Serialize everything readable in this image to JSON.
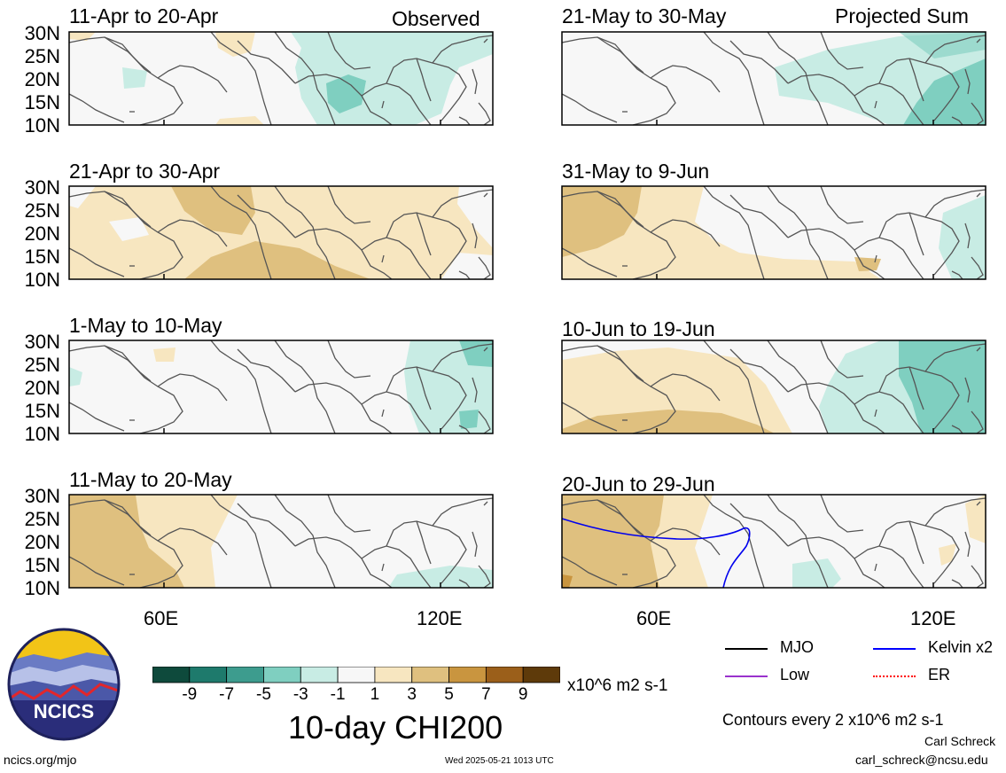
{
  "header": {
    "left_label": "Observed",
    "right_label": "Projected Sum"
  },
  "panels": [
    {
      "column": "left",
      "title": "11-Apr to 20-Apr"
    },
    {
      "column": "left",
      "title": "21-Apr to 30-Apr"
    },
    {
      "column": "left",
      "title": "1-May to 10-May"
    },
    {
      "column": "left",
      "title": "11-May to 20-May"
    },
    {
      "column": "right",
      "title": "21-May to 30-May"
    },
    {
      "column": "right",
      "title": "31-May to 9-Jun"
    },
    {
      "column": "right",
      "title": "10-Jun to 19-Jun"
    },
    {
      "column": "right",
      "title": "20-Jun to 29-Jun"
    }
  ],
  "lat_labels": [
    "30N",
    "25N",
    "20N",
    "15N",
    "10N"
  ],
  "lon_labels": [
    "60E",
    "120E"
  ],
  "colorbar": {
    "ticks": [
      "-9",
      "-7",
      "-5",
      "-3",
      "-1",
      "1",
      "3",
      "5",
      "7",
      "9"
    ],
    "units": "x10^6 m2 s-1",
    "colors": [
      "#0e4a3c",
      "#1e7a6c",
      "#3d9c8e",
      "#7fcfc0",
      "#c8ece4",
      "#f7f7f7",
      "#f7e6c0",
      "#dfc07f",
      "#c9953f",
      "#9b5f1a",
      "#5e3a0a"
    ]
  },
  "main_title": "10-day CHI200",
  "legend": {
    "mjo": "MJO",
    "kelvin": "Kelvin x2",
    "low": "Low",
    "er": "ER",
    "contour_note": "Contours every 2 x10^6 m2 s-1",
    "line_colors": {
      "mjo": "#000000",
      "kelvin": "#0000ff",
      "low": "#9a32cd",
      "er": "#ff0000"
    }
  },
  "logo": {
    "text": "NCICS"
  },
  "footer": {
    "url": "ncics.org/mjo",
    "timestamp": "Wed 2025-05-21 1013 UTC",
    "author": "Carl Schreck",
    "email": "carl_schreck@ncsu.edu"
  }
}
